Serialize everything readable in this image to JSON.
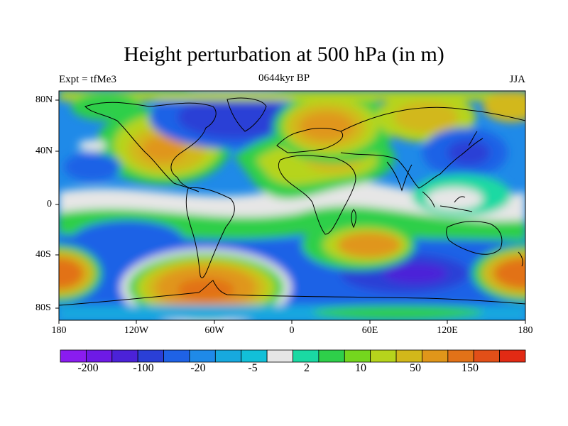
{
  "title": "Height perturbation at 500 hPa (in m)",
  "subtitle_left": "Expt = tfMe3",
  "subtitle_center": "0644kyr BP",
  "subtitle_right": "JJA",
  "lat_labels": [
    "80N",
    "40N",
    "0",
    "40S",
    "80S"
  ],
  "lon_labels": [
    "180",
    "120W",
    "60W",
    "0",
    "60E",
    "120E",
    "180"
  ],
  "colorbar": {
    "colors": [
      "#8a1cf0",
      "#6e1ae6",
      "#4b22d8",
      "#2a3fd6",
      "#1f62e6",
      "#1f8ae8",
      "#17a9de",
      "#12c0d8",
      "#e6e6e6",
      "#1ad9a3",
      "#2ecf4a",
      "#74d61e",
      "#b6d41c",
      "#d2b81a",
      "#e0961a",
      "#e27218",
      "#e24f18",
      "#e22a14"
    ],
    "labels": [
      "-200",
      "-100",
      "-20",
      "-5",
      "2",
      "10",
      "50",
      "150"
    ]
  }
}
